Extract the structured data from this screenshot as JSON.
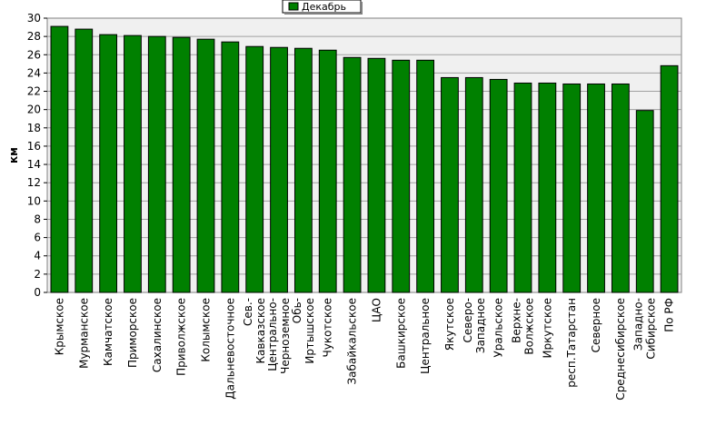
{
  "chart_data": {
    "type": "bar",
    "title": "",
    "xlabel": "",
    "ylabel": "км",
    "ylim": [
      0,
      30
    ],
    "ytick_step": 2,
    "grid": true,
    "legend_position": "top-center",
    "bar_color": "#008000",
    "categories": [
      "Крымское",
      "Мурманское",
      "Камчатское",
      "Приморское",
      "Сахалинское",
      "Приволжское",
      "Колымское",
      "Дальневосточное",
      "Сев.-Кавказское",
      "Центрально-Черноземное",
      "Обь-Иртышское",
      "Чукотское",
      "Забайкальское",
      "ЦАО",
      "Башкирское",
      "Центральное",
      "Якутское",
      "Северо-Западное",
      "Уральское",
      "Верхне-Волжское",
      "Иркутское",
      "респ.Татарстан",
      "Северное",
      "Среднесибирское",
      "Западно-Сибирское",
      "По РФ"
    ],
    "category_lines": [
      [
        "Крымское"
      ],
      [
        "Мурманское"
      ],
      [
        "Камчатское"
      ],
      [
        "Приморское"
      ],
      [
        "Сахалинское"
      ],
      [
        "Приволжское"
      ],
      [
        "Колымское"
      ],
      [
        "Дальневосточное"
      ],
      [
        "Сев.-",
        "Кавказское"
      ],
      [
        "Центрально-",
        "Черноземное"
      ],
      [
        "Обь-",
        "Иртышское"
      ],
      [
        "Чукотское"
      ],
      [
        "Забайкальское"
      ],
      [
        "ЦАО"
      ],
      [
        "Башкирское"
      ],
      [
        "Центральное"
      ],
      [
        "Якутское"
      ],
      [
        "Северо-",
        "Западное"
      ],
      [
        "Уральское"
      ],
      [
        "Верхне-",
        "Волжское"
      ],
      [
        "Иркутское"
      ],
      [
        "респ.Татарстан"
      ],
      [
        "Северное"
      ],
      [
        "Среднесибирское"
      ],
      [
        "Западно-",
        "Сибирское"
      ],
      [
        "По РФ"
      ]
    ],
    "series": [
      {
        "name": "Декабрь",
        "values": [
          29.1,
          28.8,
          28.2,
          28.1,
          28.0,
          27.9,
          27.7,
          27.4,
          26.9,
          26.8,
          26.7,
          26.5,
          25.7,
          25.6,
          25.4,
          25.4,
          23.5,
          23.5,
          23.3,
          22.9,
          22.9,
          22.8,
          22.8,
          22.8,
          19.9,
          24.8
        ]
      }
    ]
  }
}
